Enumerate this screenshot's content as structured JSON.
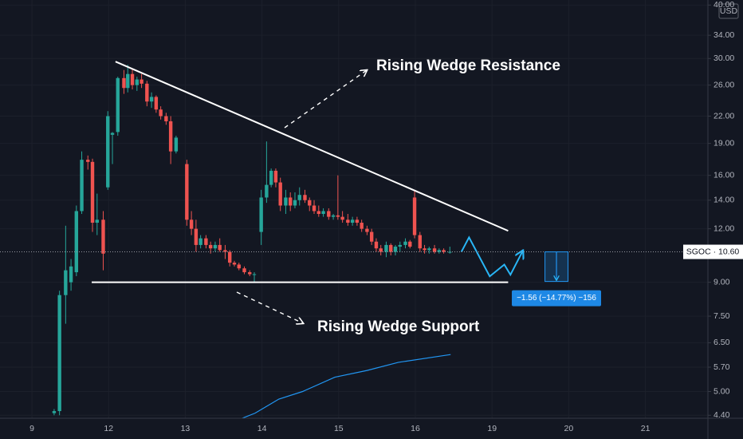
{
  "chart_data": {
    "type": "candlestick",
    "symbol_label": "SGOC · 10.60",
    "currency": "USD",
    "last_price": 10.6,
    "log_scale": true,
    "grid": true,
    "up_color": "#26a69a",
    "down_color": "#ef5350",
    "xlim": [
      -0.416,
      8.815
    ],
    "ylim": [
      4.33,
      41.1
    ],
    "xticks": [
      {
        "value": 0,
        "label": "9"
      },
      {
        "value": 1,
        "label": "12"
      },
      {
        "value": 2,
        "label": "13"
      },
      {
        "value": 3,
        "label": "14"
      },
      {
        "value": 4,
        "label": "15"
      },
      {
        "value": 5,
        "label": "16"
      },
      {
        "value": 6,
        "label": "19"
      },
      {
        "value": 7,
        "label": "20"
      },
      {
        "value": 8,
        "label": "21"
      }
    ],
    "yticks": [
      {
        "value": 4.4,
        "label": "4.40"
      },
      {
        "value": 5,
        "label": "5.00"
      },
      {
        "value": 5.7,
        "label": "5.70"
      },
      {
        "value": 6.5,
        "label": "6.50"
      },
      {
        "value": 7.5,
        "label": "7.50"
      },
      {
        "value": 9,
        "label": "9.00"
      },
      {
        "value": 12,
        "label": "12.00"
      },
      {
        "value": 14,
        "label": "14.00"
      },
      {
        "value": 16,
        "label": "16.00"
      },
      {
        "value": 19,
        "label": "19.00"
      },
      {
        "value": 22,
        "label": "22.00"
      },
      {
        "value": 26,
        "label": "26.00"
      },
      {
        "value": 30,
        "label": "30.00"
      },
      {
        "value": 34,
        "label": "34.00"
      },
      {
        "value": 40,
        "label": "40.00"
      }
    ],
    "x": [
      0.29,
      0.36,
      0.44,
      0.51,
      0.58,
      0.65,
      0.73,
      0.79,
      0.85,
      0.93,
      0.99,
      1.05,
      1.12,
      1.2,
      1.25,
      1.31,
      1.37,
      1.43,
      1.5,
      1.56,
      1.62,
      1.68,
      1.75,
      1.81,
      1.88,
      2.02,
      2.08,
      2.14,
      2.2,
      2.27,
      2.33,
      2.39,
      2.45,
      2.52,
      2.58,
      2.64,
      2.7,
      2.77,
      2.84,
      2.9,
      2.99,
      3.06,
      3.12,
      3.18,
      3.24,
      3.31,
      3.37,
      3.43,
      3.49,
      3.56,
      3.62,
      3.68,
      3.74,
      3.8,
      3.87,
      3.93,
      3.99,
      4.05,
      4.12,
      4.18,
      4.24,
      4.3,
      4.37,
      4.43,
      4.49,
      4.55,
      4.62,
      4.68,
      4.74,
      4.8,
      4.87,
      4.93,
      4.99,
      5.06,
      5.12,
      5.18,
      5.25,
      5.31,
      5.37,
      5.45
    ],
    "open": [
      4.45,
      4.5,
      8.4,
      9.0,
      9.5,
      13.2,
      17.4,
      17.2,
      12.4,
      12.6,
      15.0,
      19.9,
      20.2,
      27.0,
      25.6,
      27.6,
      26.0,
      26.8,
      26.2,
      23.8,
      24.4,
      22.8,
      22.0,
      21.4,
      18.2,
      17.0,
      12.6,
      12.0,
      11.0,
      11.4,
      11.0,
      10.8,
      11.0,
      10.7,
      10.6,
      10.0,
      9.9,
      9.7,
      9.5,
      9.4,
      11.8,
      14.2,
      15.2,
      16.4,
      15.4,
      13.6,
      14.2,
      13.6,
      14.0,
      14.4,
      14.0,
      13.6,
      13.2,
      13.0,
      13.2,
      12.8,
      12.9,
      12.8,
      12.6,
      12.4,
      12.6,
      12.4,
      12.0,
      11.8,
      11.2,
      10.8,
      10.6,
      11.0,
      10.6,
      10.9,
      11.0,
      11.2,
      14.2,
      11.6,
      10.8,
      10.7,
      10.8,
      10.6,
      10.7,
      10.6
    ],
    "high": [
      4.55,
      8.6,
      12.2,
      10.2,
      13.6,
      18.2,
      17.8,
      17.5,
      14.5,
      13.2,
      22.6,
      20.2,
      27.2,
      28.2,
      29.0,
      28.4,
      27.2,
      27.6,
      26.6,
      25.0,
      24.6,
      23.2,
      22.4,
      22.0,
      19.8,
      17.4,
      13.2,
      12.6,
      11.6,
      11.6,
      11.2,
      11.2,
      11.4,
      11.0,
      10.7,
      10.1,
      10.0,
      9.8,
      9.6,
      9.5,
      14.8,
      19.2,
      16.6,
      16.6,
      15.8,
      14.8,
      14.6,
      14.6,
      15.0,
      14.8,
      14.2,
      14.0,
      13.6,
      13.4,
      13.4,
      13.0,
      16.0,
      13.2,
      13.0,
      12.8,
      12.8,
      12.6,
      12.2,
      12.0,
      11.4,
      11.0,
      11.2,
      11.1,
      11.0,
      11.2,
      11.4,
      11.3,
      14.8,
      11.8,
      11.0,
      10.9,
      11.0,
      10.8,
      10.8,
      10.9
    ],
    "low": [
      4.4,
      4.4,
      7.2,
      8.6,
      9.3,
      13.0,
      16.5,
      11.8,
      11.6,
      9.6,
      14.8,
      17.0,
      19.8,
      24.8,
      25.0,
      25.4,
      25.2,
      25.6,
      23.2,
      23.0,
      22.4,
      21.6,
      21.0,
      17.0,
      18.0,
      12.2,
      11.6,
      10.6,
      10.8,
      10.8,
      10.5,
      10.6,
      10.6,
      10.2,
      9.8,
      9.8,
      9.6,
      9.4,
      9.3,
      9.0,
      11.0,
      13.8,
      15.0,
      15.0,
      13.2,
      13.0,
      13.2,
      13.4,
      13.6,
      13.8,
      13.2,
      13.0,
      12.8,
      12.8,
      12.6,
      12.6,
      12.6,
      12.4,
      12.2,
      12.2,
      12.2,
      11.8,
      11.6,
      11.0,
      10.6,
      10.4,
      10.3,
      10.4,
      10.4,
      10.6,
      10.8,
      10.8,
      11.4,
      10.6,
      10.5,
      10.5,
      10.5,
      10.5,
      10.5,
      10.5
    ],
    "close": [
      4.5,
      8.4,
      9.6,
      9.8,
      13.2,
      17.4,
      17.2,
      12.4,
      12.6,
      10.5,
      22.0,
      20.1,
      27.0,
      25.6,
      27.6,
      26.0,
      26.8,
      26.2,
      23.8,
      24.4,
      22.8,
      22.0,
      21.4,
      18.2,
      19.6,
      12.6,
      12.0,
      11.0,
      11.4,
      11.0,
      10.8,
      11.0,
      10.7,
      10.6,
      10.0,
      9.9,
      9.7,
      9.5,
      9.4,
      9.4,
      14.2,
      15.2,
      16.4,
      15.4,
      13.6,
      14.2,
      13.6,
      14.0,
      14.4,
      14.0,
      13.6,
      13.2,
      13.0,
      13.2,
      12.8,
      12.9,
      12.8,
      12.6,
      12.4,
      12.6,
      12.4,
      12.0,
      11.8,
      11.2,
      10.8,
      10.6,
      11.0,
      10.6,
      10.9,
      11.0,
      11.2,
      10.9,
      11.6,
      10.8,
      10.7,
      10.8,
      10.6,
      10.7,
      10.6,
      10.6
    ],
    "moving_average": {
      "color": "#2196f3",
      "x": [
        2.7,
        2.91,
        3.22,
        3.53,
        3.95,
        4.37,
        4.78,
        5.46
      ],
      "values": [
        4.3,
        4.45,
        4.8,
        5.0,
        5.4,
        5.6,
        5.85,
        6.1
      ]
    },
    "resistance": {
      "label": "Rising Wedge Resistance",
      "x": [
        1.09,
        6.21
      ],
      "values": [
        29.5,
        11.87
      ]
    },
    "support": {
      "label": "Rising Wedge Support",
      "x": [
        0.78,
        6.21
      ],
      "values": [
        9.0,
        9.0
      ]
    },
    "projection": {
      "color": "#29b6f6",
      "x": [
        5.6,
        5.7,
        5.97,
        6.16,
        6.24,
        6.4
      ],
      "values": [
        10.6,
        11.46,
        9.29,
        9.9,
        9.37,
        10.65
      ]
    },
    "measure": {
      "x": [
        6.69,
        6.99
      ],
      "values": [
        10.6,
        9.04
      ],
      "label": "−1.56 (−14.77%) −156"
    }
  }
}
